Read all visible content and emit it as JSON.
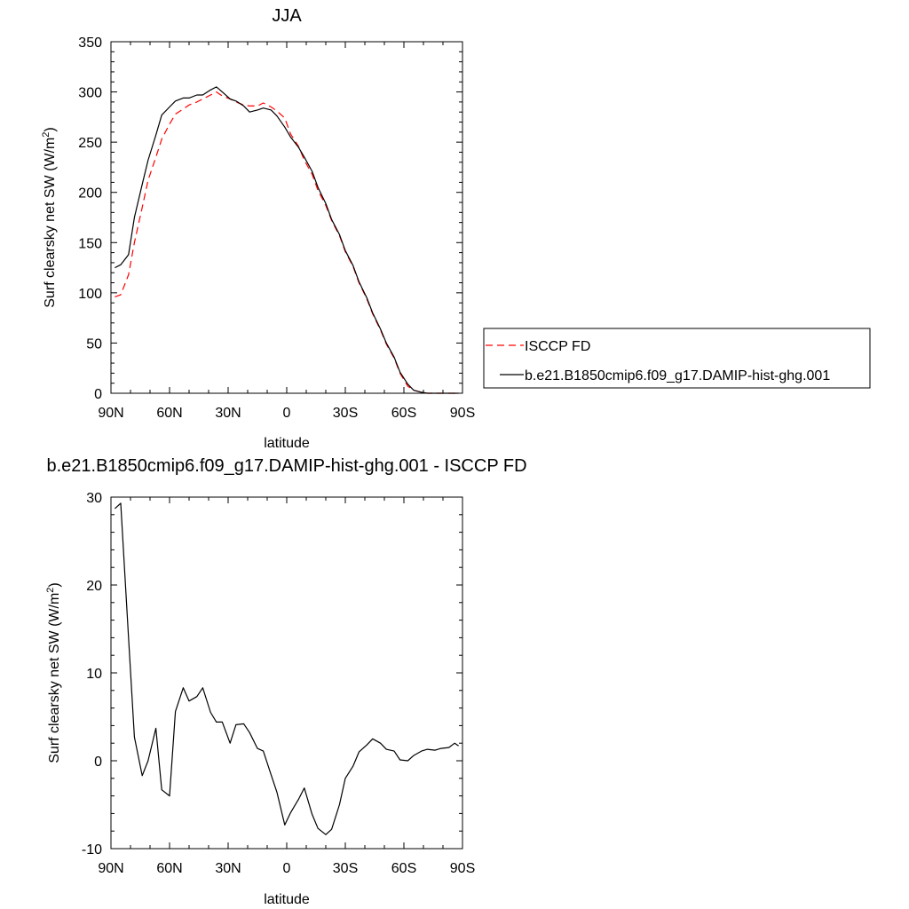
{
  "chart_data": [
    {
      "type": "line",
      "title": "JJA",
      "xlabel": "latitude",
      "ylabel": "Surf clearsky net SW (W/m",
      "ylabel_sup": "2",
      "ylabel_close": ")",
      "xlim": [
        90,
        -90
      ],
      "ylim": [
        0,
        350
      ],
      "x_ticks": [
        90,
        60,
        30,
        0,
        -30,
        -60,
        -90
      ],
      "x_tick_labels": [
        "90N",
        "60N",
        "30N",
        "0",
        "30S",
        "60S",
        "90S"
      ],
      "y_ticks": [
        0,
        50,
        100,
        150,
        200,
        250,
        300,
        350
      ],
      "y_tick_labels": [
        "0",
        "50",
        "100",
        "150",
        "200",
        "250",
        "300",
        "350"
      ],
      "legend_position": "right",
      "series": [
        {
          "name": "ISCCP FD",
          "color": "#ff0000",
          "dashed": true,
          "x": [
            88,
            85,
            81,
            78,
            74,
            71,
            67,
            64,
            60,
            57,
            53,
            50,
            46,
            43,
            39,
            36,
            33,
            29,
            26,
            22,
            19,
            15,
            12,
            8,
            5,
            1,
            -2,
            -6,
            -9,
            -13,
            -16,
            -20,
            -23,
            -27,
            -30,
            -34,
            -37,
            -41,
            -44,
            -48,
            -51,
            -55,
            -58,
            -62,
            -65,
            -69,
            -72,
            -76,
            -79,
            -83,
            -86,
            -88
          ],
          "y": [
            96,
            98,
            118,
            150,
            185,
            212,
            235,
            253,
            268,
            278,
            283,
            287,
            290,
            293,
            297,
            300,
            296,
            293,
            290,
            287,
            286,
            286,
            289,
            285,
            281,
            274,
            258,
            246,
            232,
            218,
            202,
            187,
            172,
            157,
            141,
            126,
            110,
            94,
            79,
            63,
            49,
            35,
            20,
            7,
            3,
            1,
            0,
            0,
            0,
            0,
            0,
            0
          ]
        },
        {
          "name": "b.e21.B1850cmip6.f09_g17.DAMIP-hist-ghg.001",
          "color": "#000000",
          "dashed": false,
          "x": [
            88,
            85,
            81,
            78,
            74,
            71,
            67,
            64,
            60,
            57,
            53,
            50,
            46,
            43,
            39,
            36,
            33,
            29,
            26,
            22,
            19,
            15,
            12,
            8,
            5,
            1,
            -2,
            -6,
            -9,
            -13,
            -16,
            -20,
            -23,
            -27,
            -30,
            -34,
            -37,
            -41,
            -44,
            -48,
            -51,
            -55,
            -58,
            -62,
            -65,
            -69,
            -72,
            -76,
            -79,
            -83,
            -86,
            -88
          ],
          "y": [
            125,
            128,
            138,
            175,
            208,
            232,
            257,
            277,
            285,
            291,
            294,
            294,
            297,
            297,
            302,
            305,
            300,
            293,
            291,
            286,
            280,
            282,
            284,
            282,
            276,
            265,
            255,
            245,
            235,
            221,
            205,
            189,
            173,
            158,
            142,
            127,
            111,
            95,
            80,
            64,
            50,
            36,
            21,
            9,
            3,
            1,
            0,
            0,
            0,
            0,
            0,
            0
          ]
        }
      ]
    },
    {
      "type": "line",
      "title": "b.e21.B1850cmip6.f09_g17.DAMIP-hist-ghg.001 - ISCCP FD",
      "xlabel": "latitude",
      "ylabel": "Surf clearsky net SW (W/m",
      "ylabel_sup": "2",
      "ylabel_close": ")",
      "xlim": [
        90,
        -90
      ],
      "ylim": [
        -10,
        30
      ],
      "x_ticks": [
        90,
        60,
        30,
        0,
        -30,
        -60,
        -90
      ],
      "x_tick_labels": [
        "90N",
        "60N",
        "30N",
        "0",
        "30S",
        "60S",
        "90S"
      ],
      "y_ticks": [
        -10,
        0,
        10,
        20,
        30
      ],
      "y_tick_labels": [
        "-10",
        "0",
        "10",
        "20",
        "30"
      ],
      "series": [
        {
          "color": "#000000",
          "dashed": false,
          "x": [
            88,
            85,
            81,
            78,
            74,
            71,
            67,
            64,
            60,
            57,
            53,
            50,
            46,
            43,
            39,
            36,
            33,
            29,
            26,
            22,
            19,
            15,
            12,
            8,
            5,
            1,
            -2,
            -6,
            -9,
            -13,
            -16,
            -20,
            -23,
            -27,
            -30,
            -34,
            -37,
            -41,
            -44,
            -48,
            -51,
            -55,
            -58,
            -62,
            -65,
            -69,
            -72,
            -76,
            -79,
            -83,
            -86,
            -88
          ],
          "y": [
            28.7,
            29.3,
            14,
            2.7,
            -1.7,
            0,
            3.7,
            -3.3,
            -4,
            5.6,
            8.3,
            6.8,
            7.3,
            8.3,
            5.5,
            4.4,
            4.4,
            2,
            4.1,
            4.2,
            3.2,
            1.4,
            1.1,
            -1.6,
            -3.6,
            -7.3,
            -5.9,
            -4.4,
            -3.1,
            -6.1,
            -7.7,
            -8.4,
            -7.8,
            -5,
            -2,
            -0.6,
            1,
            1.8,
            2.5,
            2,
            1.3,
            1.1,
            0.1,
            0,
            0.6,
            1.1,
            1.3,
            1.2,
            1.4,
            1.5,
            2,
            1.7
          ]
        }
      ]
    }
  ]
}
